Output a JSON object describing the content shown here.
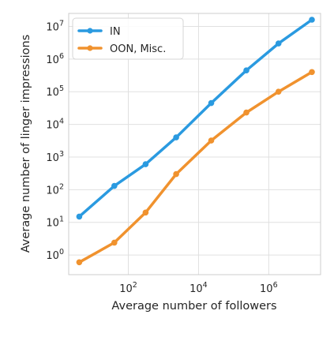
{
  "chart_data": {
    "type": "line",
    "xlabel": "Average number of followers",
    "ylabel": "Average number of linger impressions",
    "x_scale": "log",
    "y_scale": "log",
    "xlim": [
      2,
      30000000
    ],
    "ylim": [
      0.25,
      25000000
    ],
    "grid": true,
    "legend_position": "top-left",
    "x_ticks": [
      {
        "base": "10",
        "exp": "2",
        "value": 100
      },
      {
        "base": "10",
        "exp": "4",
        "value": 10000
      },
      {
        "base": "10",
        "exp": "6",
        "value": 1000000
      }
    ],
    "y_ticks": [
      {
        "base": "10",
        "exp": "0",
        "value": 1
      },
      {
        "base": "10",
        "exp": "1",
        "value": 10
      },
      {
        "base": "10",
        "exp": "2",
        "value": 100
      },
      {
        "base": "10",
        "exp": "3",
        "value": 1000
      },
      {
        "base": "10",
        "exp": "4",
        "value": 10000
      },
      {
        "base": "10",
        "exp": "5",
        "value": 100000
      },
      {
        "base": "10",
        "exp": "6",
        "value": 1000000
      },
      {
        "base": "10",
        "exp": "7",
        "value": 10000000
      }
    ],
    "series": [
      {
        "name": "IN",
        "color": "#2a9ae0",
        "x": [
          4,
          40,
          310,
          2300,
          23000,
          230000,
          1900000,
          17000000
        ],
        "y": [
          15,
          130,
          600,
          4000,
          45000,
          450000,
          3000000,
          16000000
        ]
      },
      {
        "name": "OON, Misc.",
        "color": "#f0922e",
        "x": [
          4,
          40,
          310,
          2300,
          23000,
          230000,
          1900000,
          17000000
        ],
        "y": [
          0.6,
          2.4,
          20,
          300,
          3200,
          23000,
          100000,
          400000
        ]
      }
    ]
  }
}
